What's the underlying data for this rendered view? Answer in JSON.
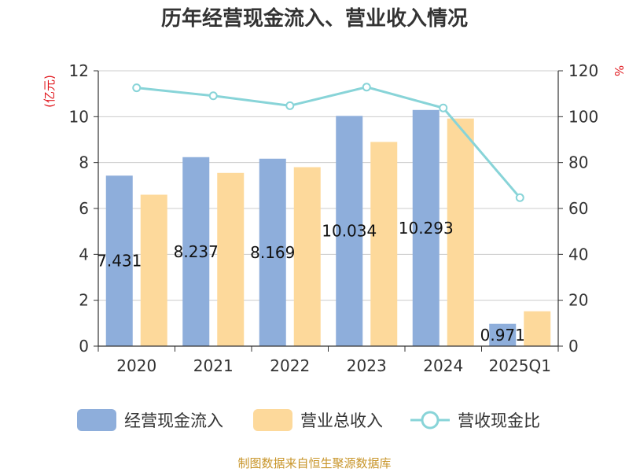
{
  "chart_data": {
    "type": "bar",
    "title": "历年经营现金流入、营业收入情况",
    "left_unit": "(亿元)",
    "right_unit": "%",
    "categories": [
      "2020",
      "2021",
      "2022",
      "2023",
      "2024",
      "2025Q1"
    ],
    "series": [
      {
        "name": "经营现金流入",
        "type": "bar",
        "axis": "left",
        "color": "#8eaedb",
        "values": [
          7.431,
          8.237,
          8.169,
          10.034,
          10.293,
          0.971
        ],
        "labels": [
          "7.431",
          "8.237",
          "8.169",
          "10.034",
          "10.293",
          "0.971"
        ]
      },
      {
        "name": "营业总收入",
        "type": "bar",
        "axis": "left",
        "color": "#fdd99b",
        "values": [
          6.6,
          7.55,
          7.8,
          8.9,
          9.92,
          1.52
        ]
      },
      {
        "name": "营收现金比",
        "type": "line",
        "axis": "right",
        "color": "#88d4d8",
        "values": [
          112.6,
          109.1,
          104.8,
          112.9,
          103.8,
          64.7
        ]
      }
    ],
    "y_left": {
      "min": 0,
      "max": 12,
      "ticks": [
        "0",
        "2",
        "4",
        "6",
        "8",
        "10",
        "12"
      ]
    },
    "y_right": {
      "min": 0,
      "max": 120,
      "ticks": [
        "0",
        "20",
        "40",
        "60",
        "80",
        "100",
        "120"
      ]
    },
    "grid": true,
    "legend": "bottom"
  },
  "source": "制图数据来自恒生聚源数据库"
}
